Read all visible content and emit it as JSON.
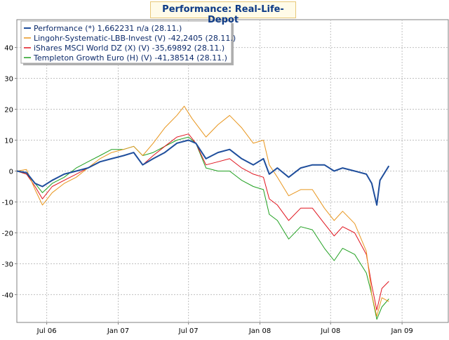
{
  "chart_data": {
    "type": "line",
    "title": "Performance: Real-Life-Depot",
    "xlabel": "",
    "ylabel": "",
    "x_range": [
      "2006-04-15",
      "2009-04-30"
    ],
    "ylim": [
      -49,
      49
    ],
    "y_ticks": [
      40,
      30,
      20,
      10,
      0,
      -10,
      -20,
      -30,
      -40
    ],
    "y_tick_labels": [
      "40",
      "30",
      "20",
      "10",
      "0",
      "-10",
      "-20",
      "-30",
      "-40"
    ],
    "x_ticks": [
      "2006-07-01",
      "2007-01-01",
      "2007-07-01",
      "2008-01-01",
      "2008-07-01",
      "2009-01-01"
    ],
    "x_tick_labels": [
      "Jul 06",
      "Jan 07",
      "Jul 07",
      "Jan 08",
      "Jul 08",
      "Jan 09"
    ],
    "grid": true,
    "legend_position": "top-left",
    "series": [
      {
        "name": "Performance (*) 1,662231 n/a (28.11.)",
        "color": "#1f4e9c",
        "points": [
          [
            "2006-04-15",
            0
          ],
          [
            "2006-05-10",
            -0.5
          ],
          [
            "2006-06-01",
            -4
          ],
          [
            "2006-06-20",
            -5
          ],
          [
            "2006-07-15",
            -3
          ],
          [
            "2006-08-15",
            -1
          ],
          [
            "2006-09-15",
            0
          ],
          [
            "2006-10-15",
            1
          ],
          [
            "2006-11-15",
            3
          ],
          [
            "2006-12-15",
            4
          ],
          [
            "2007-01-15",
            5
          ],
          [
            "2007-02-10",
            6
          ],
          [
            "2007-03-05",
            2
          ],
          [
            "2007-04-01",
            4
          ],
          [
            "2007-05-01",
            6
          ],
          [
            "2007-06-01",
            9
          ],
          [
            "2007-07-01",
            10
          ],
          [
            "2007-07-20",
            9
          ],
          [
            "2007-08-15",
            4
          ],
          [
            "2007-09-15",
            6
          ],
          [
            "2007-10-15",
            7
          ],
          [
            "2007-11-15",
            4
          ],
          [
            "2007-12-15",
            2
          ],
          [
            "2008-01-10",
            4
          ],
          [
            "2008-01-25",
            -1
          ],
          [
            "2008-02-15",
            1
          ],
          [
            "2008-03-15",
            -2
          ],
          [
            "2008-04-15",
            1
          ],
          [
            "2008-05-15",
            2
          ],
          [
            "2008-06-15",
            2
          ],
          [
            "2008-07-10",
            0
          ],
          [
            "2008-08-01",
            1
          ],
          [
            "2008-09-01",
            0
          ],
          [
            "2008-10-01",
            -1
          ],
          [
            "2008-10-15",
            -4
          ],
          [
            "2008-10-28",
            -11
          ],
          [
            "2008-11-05",
            -3
          ],
          [
            "2008-11-28",
            1.66
          ]
        ]
      },
      {
        "name": "Lingohr-Systematic-LBB-Invest (V) -42,2405 (28.11.)",
        "color": "#e8961e",
        "points": [
          [
            "2006-04-15",
            0
          ],
          [
            "2006-05-10",
            0.5
          ],
          [
            "2006-06-01",
            -6
          ],
          [
            "2006-06-20",
            -11
          ],
          [
            "2006-07-15",
            -7
          ],
          [
            "2006-08-15",
            -4
          ],
          [
            "2006-09-15",
            -2
          ],
          [
            "2006-10-15",
            1
          ],
          [
            "2006-11-15",
            4
          ],
          [
            "2006-12-15",
            6
          ],
          [
            "2007-01-15",
            7
          ],
          [
            "2007-02-10",
            8
          ],
          [
            "2007-03-05",
            5
          ],
          [
            "2007-04-01",
            9
          ],
          [
            "2007-05-01",
            14
          ],
          [
            "2007-06-01",
            18
          ],
          [
            "2007-06-20",
            21
          ],
          [
            "2007-07-10",
            17
          ],
          [
            "2007-08-15",
            11
          ],
          [
            "2007-09-15",
            15
          ],
          [
            "2007-10-15",
            18
          ],
          [
            "2007-11-15",
            14
          ],
          [
            "2007-12-15",
            9
          ],
          [
            "2008-01-10",
            10
          ],
          [
            "2008-01-25",
            2
          ],
          [
            "2008-02-15",
            -2
          ],
          [
            "2008-03-15",
            -8
          ],
          [
            "2008-04-15",
            -6
          ],
          [
            "2008-05-15",
            -6
          ],
          [
            "2008-06-15",
            -12
          ],
          [
            "2008-07-10",
            -16
          ],
          [
            "2008-08-01",
            -13
          ],
          [
            "2008-09-01",
            -17
          ],
          [
            "2008-10-01",
            -26
          ],
          [
            "2008-10-15",
            -40
          ],
          [
            "2008-10-28",
            -47
          ],
          [
            "2008-11-10",
            -41
          ],
          [
            "2008-11-28",
            -42.24
          ]
        ]
      },
      {
        "name": "iShares MSCI World DZ (X) (V) -35,69892 (28.11.)",
        "color": "#e0141e",
        "points": [
          [
            "2006-04-15",
            0
          ],
          [
            "2006-05-10",
            -1
          ],
          [
            "2006-06-01",
            -5
          ],
          [
            "2006-06-20",
            -9
          ],
          [
            "2006-07-15",
            -5
          ],
          [
            "2006-08-15",
            -3
          ],
          [
            "2006-09-15",
            -1
          ],
          [
            "2006-10-15",
            1
          ],
          [
            "2006-11-15",
            3
          ],
          [
            "2006-12-15",
            4
          ],
          [
            "2007-01-15",
            5
          ],
          [
            "2007-02-10",
            6
          ],
          [
            "2007-03-05",
            2
          ],
          [
            "2007-04-01",
            5
          ],
          [
            "2007-05-01",
            8
          ],
          [
            "2007-06-01",
            11
          ],
          [
            "2007-07-01",
            12
          ],
          [
            "2007-07-20",
            9
          ],
          [
            "2007-08-15",
            2
          ],
          [
            "2007-09-15",
            3
          ],
          [
            "2007-10-15",
            4
          ],
          [
            "2007-11-15",
            1
          ],
          [
            "2007-12-15",
            -1
          ],
          [
            "2008-01-10",
            -2
          ],
          [
            "2008-01-25",
            -9
          ],
          [
            "2008-02-15",
            -11
          ],
          [
            "2008-03-15",
            -16
          ],
          [
            "2008-04-15",
            -12
          ],
          [
            "2008-05-15",
            -12
          ],
          [
            "2008-06-15",
            -17
          ],
          [
            "2008-07-10",
            -21
          ],
          [
            "2008-08-01",
            -18
          ],
          [
            "2008-09-01",
            -20
          ],
          [
            "2008-10-01",
            -27
          ],
          [
            "2008-10-15",
            -37
          ],
          [
            "2008-10-28",
            -45
          ],
          [
            "2008-11-10",
            -38
          ],
          [
            "2008-11-28",
            -35.7
          ]
        ]
      },
      {
        "name": "Templeton Growth Euro (H) (V) -41,38514 (28.11.)",
        "color": "#20a020",
        "points": [
          [
            "2006-04-15",
            0
          ],
          [
            "2006-05-10",
            -1
          ],
          [
            "2006-06-01",
            -4
          ],
          [
            "2006-06-20",
            -7
          ],
          [
            "2006-07-15",
            -4
          ],
          [
            "2006-08-15",
            -2
          ],
          [
            "2006-09-15",
            1
          ],
          [
            "2006-10-15",
            3
          ],
          [
            "2006-11-15",
            5
          ],
          [
            "2006-12-15",
            7
          ],
          [
            "2007-01-15",
            7
          ],
          [
            "2007-02-10",
            8
          ],
          [
            "2007-03-05",
            5
          ],
          [
            "2007-04-01",
            6
          ],
          [
            "2007-05-01",
            8
          ],
          [
            "2007-06-01",
            10
          ],
          [
            "2007-07-01",
            11
          ],
          [
            "2007-07-20",
            9
          ],
          [
            "2007-08-15",
            1
          ],
          [
            "2007-09-15",
            0
          ],
          [
            "2007-10-15",
            0
          ],
          [
            "2007-11-15",
            -3
          ],
          [
            "2007-12-15",
            -5
          ],
          [
            "2008-01-10",
            -6
          ],
          [
            "2008-01-25",
            -14
          ],
          [
            "2008-02-15",
            -16
          ],
          [
            "2008-03-15",
            -22
          ],
          [
            "2008-04-15",
            -18
          ],
          [
            "2008-05-15",
            -19
          ],
          [
            "2008-06-15",
            -25
          ],
          [
            "2008-07-10",
            -29
          ],
          [
            "2008-08-01",
            -25
          ],
          [
            "2008-09-01",
            -27
          ],
          [
            "2008-10-01",
            -33
          ],
          [
            "2008-10-15",
            -40
          ],
          [
            "2008-10-28",
            -48
          ],
          [
            "2008-11-10",
            -44
          ],
          [
            "2008-11-28",
            -41.39
          ]
        ]
      }
    ]
  }
}
